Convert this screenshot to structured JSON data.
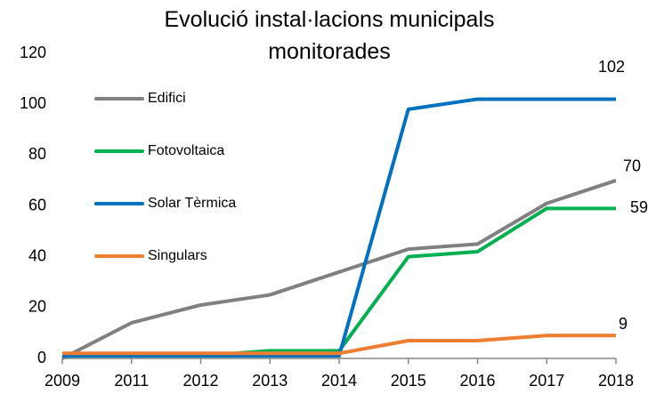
{
  "chart_data": {
    "type": "line",
    "title": "Evolució instal·lacions municipals monitorades",
    "categories": [
      "2009",
      "2011",
      "2012",
      "2013",
      "2014",
      "2015",
      "2016",
      "2017",
      "2018"
    ],
    "series": [
      {
        "name": "Edifici",
        "color": "#808080",
        "values": [
          0,
          14,
          21,
          25,
          34,
          43,
          45,
          61,
          70
        ]
      },
      {
        "name": "Fotovoltaica",
        "color": "#00b050",
        "values": [
          1,
          1,
          1,
          3,
          3,
          40,
          42,
          59,
          59
        ]
      },
      {
        "name": "Solar Tèrmica",
        "color": "#0070c0",
        "values": [
          1,
          1,
          1,
          1,
          1,
          98,
          102,
          102,
          102
        ]
      },
      {
        "name": "Singulars",
        "color": "#ed7d31",
        "values": [
          2,
          2,
          2,
          2,
          2,
          7,
          7,
          9,
          9
        ]
      }
    ],
    "ylim": [
      0,
      120
    ],
    "yticks": [
      0,
      20,
      40,
      60,
      80,
      100,
      120
    ],
    "grid": false,
    "legend": "upper left"
  }
}
